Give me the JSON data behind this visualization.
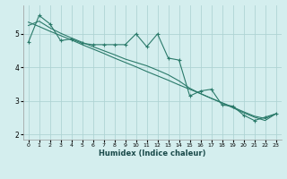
{
  "xlabel": "Humidex (Indice chaleur)",
  "bg_color": "#d4eeee",
  "grid_color": "#afd4d4",
  "line_color": "#2a7a6a",
  "x_data": [
    0,
    1,
    2,
    3,
    4,
    5,
    6,
    7,
    8,
    9,
    10,
    11,
    12,
    13,
    14,
    15,
    16,
    17,
    18,
    19,
    20,
    21,
    22,
    23
  ],
  "y_main": [
    4.75,
    5.55,
    5.3,
    4.8,
    4.85,
    4.72,
    4.68,
    4.68,
    4.68,
    4.68,
    5.0,
    4.62,
    5.0,
    4.28,
    4.22,
    3.15,
    3.3,
    3.35,
    2.88,
    2.85,
    2.58,
    2.42,
    2.52,
    2.62
  ],
  "y_smooth": [
    5.25,
    5.38,
    5.18,
    5.02,
    4.88,
    4.75,
    4.62,
    4.5,
    4.38,
    4.25,
    4.15,
    4.05,
    3.92,
    3.78,
    3.6,
    3.38,
    3.22,
    3.08,
    2.94,
    2.8,
    2.65,
    2.52,
    2.42,
    2.62
  ],
  "y_linear": [
    5.35,
    5.22,
    5.08,
    4.95,
    4.82,
    4.68,
    4.55,
    4.42,
    4.28,
    4.15,
    4.02,
    3.88,
    3.75,
    3.62,
    3.48,
    3.35,
    3.22,
    3.08,
    2.95,
    2.82,
    2.68,
    2.55,
    2.48,
    2.62
  ],
  "ylim": [
    1.85,
    5.85
  ],
  "xlim": [
    -0.5,
    23.5
  ],
  "yticks": [
    2,
    3,
    4,
    5
  ],
  "xticks": [
    0,
    1,
    2,
    3,
    4,
    5,
    6,
    7,
    8,
    9,
    10,
    11,
    12,
    13,
    14,
    15,
    16,
    17,
    18,
    19,
    20,
    21,
    22,
    23
  ],
  "xlabel_fontsize": 6.0,
  "tick_fontsize_x": 4.5,
  "tick_fontsize_y": 5.5
}
